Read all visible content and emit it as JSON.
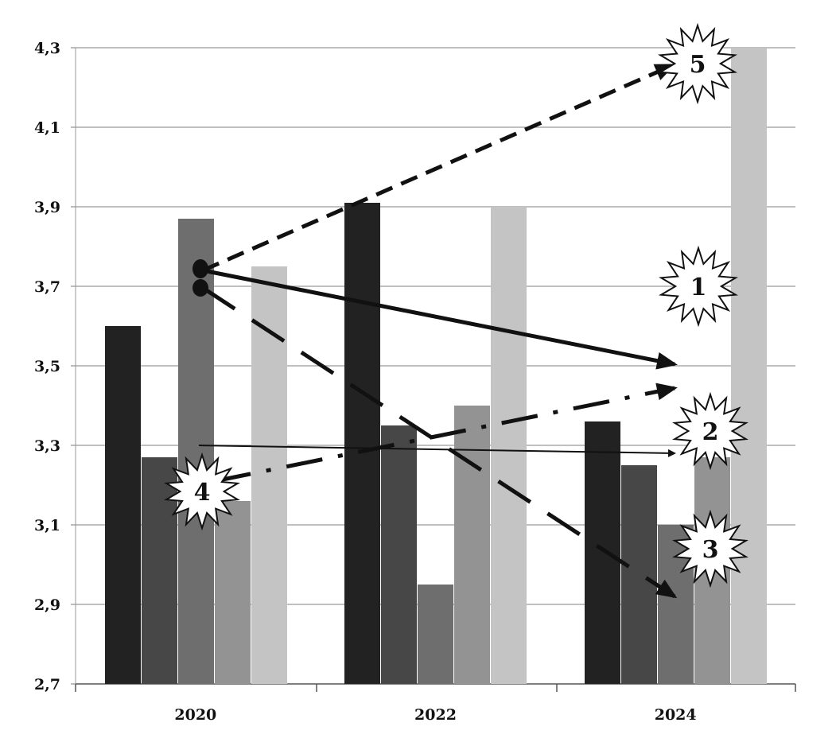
{
  "chart_data": {
    "type": "bar",
    "categories": [
      "2020",
      "2022",
      "2024"
    ],
    "y_ticks": [
      "2,7",
      "2,9",
      "3,1",
      "3,3",
      "3,5",
      "3,7",
      "3,9",
      "4,1",
      "4,3"
    ],
    "ylim": [
      2.7,
      4.3
    ],
    "grid": true,
    "series": [
      {
        "color": "#222222",
        "values": [
          3.6,
          3.91,
          3.36
        ]
      },
      {
        "color": "#474747",
        "values": [
          3.27,
          3.35,
          3.25
        ]
      },
      {
        "color": "#6e6e6e",
        "values": [
          3.87,
          2.95,
          3.1
        ]
      },
      {
        "color": "#939393",
        "values": [
          3.16,
          3.4,
          3.27
        ]
      },
      {
        "color": "#c4c4c4",
        "values": [
          3.75,
          3.9,
          4.3
        ]
      }
    ],
    "markers": [
      "1",
      "2",
      "3",
      "4",
      "5"
    ]
  }
}
